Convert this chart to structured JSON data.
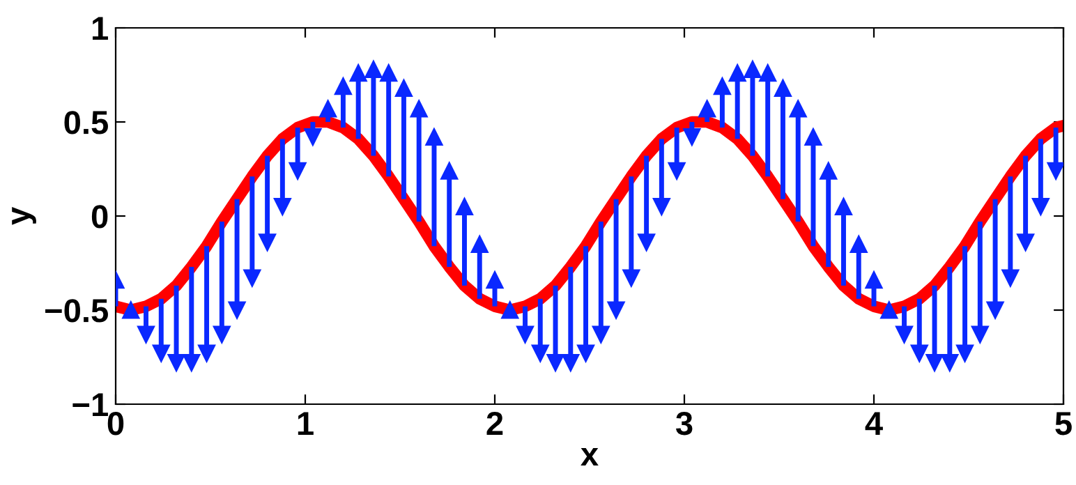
{
  "chart_data": {
    "type": "line",
    "xlabel": "x",
    "ylabel": "y",
    "xlim": [
      0,
      5
    ],
    "ylim": [
      -1,
      1
    ],
    "xticks": [
      0,
      1,
      2,
      3,
      4,
      5
    ],
    "yticks": [
      {
        "value": -1,
        "label": "−1"
      },
      {
        "value": -0.5,
        "label": "−0.5"
      },
      0,
      0.5,
      1
    ],
    "grid": false,
    "marker": "none",
    "line_style": "solid",
    "series": [
      {
        "color": "#ff0000",
        "x": [
          0,
          0.08,
          0.16,
          0.24,
          0.32,
          0.4,
          0.48,
          0.56,
          0.64,
          0.72,
          0.8,
          0.88,
          0.96,
          1.04,
          1.12,
          1.2,
          1.28,
          1.36,
          1.44,
          1.52,
          1.6,
          1.68,
          1.76,
          1.84,
          1.92,
          2,
          2.08,
          2.16,
          2.24,
          2.32,
          2.4,
          2.48,
          2.56,
          2.64,
          2.72,
          2.8,
          2.88,
          2.96,
          3.04,
          3.12,
          3.2,
          3.28,
          3.36,
          3.44,
          3.52,
          3.6,
          3.68,
          3.76,
          3.84,
          3.92,
          4,
          4.08,
          4.16,
          4.24,
          4.32,
          4.4,
          4.48,
          4.56,
          4.64,
          4.72,
          4.8,
          4.88,
          4.96,
          5
        ],
        "values": [
          -0.48,
          -0.5,
          -0.48,
          -0.44,
          -0.37,
          -0.27,
          -0.16,
          -0.03,
          0.09,
          0.21,
          0.32,
          0.41,
          0.47,
          0.5,
          0.5,
          0.47,
          0.41,
          0.32,
          0.21,
          0.09,
          -0.03,
          -0.16,
          -0.27,
          -0.37,
          -0.44,
          -0.48,
          -0.5,
          -0.48,
          -0.44,
          -0.37,
          -0.27,
          -0.16,
          -0.03,
          0.09,
          0.21,
          0.32,
          0.41,
          0.47,
          0.5,
          0.5,
          0.47,
          0.41,
          0.32,
          0.21,
          0.09,
          -0.03,
          -0.16,
          -0.27,
          -0.37,
          -0.44,
          -0.48,
          -0.5,
          -0.48,
          -0.44,
          -0.37,
          -0.27,
          -0.16,
          -0.03,
          0.09,
          0.21,
          0.32,
          0.41,
          0.47,
          0.48
        ]
      },
      {
        "type": "scatter",
        "color": "#0a28ff",
        "marker": "triangle",
        "x": [
          0,
          0.08,
          0.16,
          0.24,
          0.32,
          0.4,
          0.48,
          0.56,
          0.64,
          0.72,
          0.8,
          0.88,
          0.96,
          1.04,
          1.12,
          1.2,
          1.28,
          1.36,
          1.44,
          1.52,
          1.6,
          1.68,
          1.76,
          1.84,
          1.92,
          2,
          2.08,
          2.16,
          2.24,
          2.32,
          2.4,
          2.48,
          2.56,
          2.64,
          2.72,
          2.8,
          2.88,
          2.96,
          3.04,
          3.12,
          3.2,
          3.28,
          3.36,
          3.44,
          3.52,
          3.6,
          3.68,
          3.76,
          3.84,
          3.92,
          4,
          4.08,
          4.16,
          4.24,
          4.32,
          4.4,
          4.48,
          4.56,
          4.64,
          4.72,
          4.8,
          4.88,
          4.96
        ],
        "values": [
          -0.34,
          -0.5,
          -0.63,
          -0.73,
          -0.78,
          -0.78,
          -0.73,
          -0.63,
          -0.5,
          -0.33,
          -0.14,
          0.05,
          0.24,
          0.42,
          0.57,
          0.69,
          0.76,
          0.78,
          0.76,
          0.68,
          0.57,
          0.42,
          0.24,
          0.05,
          -0.15,
          -0.34,
          -0.5,
          -0.63,
          -0.73,
          -0.78,
          -0.78,
          -0.73,
          -0.63,
          -0.5,
          -0.33,
          -0.14,
          0.05,
          0.24,
          0.42,
          0.57,
          0.69,
          0.76,
          0.78,
          0.76,
          0.68,
          0.57,
          0.42,
          0.24,
          0.05,
          -0.15,
          -0.34,
          -0.5,
          -0.63,
          -0.73,
          -0.78,
          -0.78,
          -0.73,
          -0.63,
          -0.5,
          -0.33,
          -0.14,
          0.05,
          0.24
        ],
        "errors": [
          [
            -0.48,
            -0.34
          ],
          [
            -0.5,
            -0.5
          ],
          [
            -0.63,
            -0.48
          ],
          [
            -0.73,
            -0.44
          ],
          [
            -0.78,
            -0.37
          ],
          [
            -0.78,
            -0.27
          ],
          [
            -0.73,
            -0.16
          ],
          [
            -0.63,
            -0.03
          ],
          [
            -0.5,
            0.09
          ],
          [
            -0.33,
            0.21
          ],
          [
            -0.14,
            0.32
          ],
          [
            0.05,
            0.41
          ],
          [
            0.24,
            0.47
          ],
          [
            0.42,
            0.5
          ],
          [
            0.5,
            0.57
          ],
          [
            0.47,
            0.69
          ],
          [
            0.41,
            0.76
          ],
          [
            0.32,
            0.78
          ],
          [
            0.21,
            0.76
          ],
          [
            0.09,
            0.68
          ],
          [
            -0.03,
            0.57
          ],
          [
            -0.16,
            0.42
          ],
          [
            -0.27,
            0.24
          ],
          [
            -0.37,
            0.05
          ],
          [
            -0.44,
            -0.15
          ],
          [
            -0.48,
            -0.34
          ],
          [
            -0.5,
            -0.5
          ],
          [
            -0.63,
            -0.48
          ],
          [
            -0.73,
            -0.44
          ],
          [
            -0.78,
            -0.37
          ],
          [
            -0.78,
            -0.27
          ],
          [
            -0.73,
            -0.16
          ],
          [
            -0.63,
            -0.03
          ],
          [
            -0.5,
            0.09
          ],
          [
            -0.33,
            0.21
          ],
          [
            -0.14,
            0.32
          ],
          [
            0.05,
            0.41
          ],
          [
            0.24,
            0.47
          ],
          [
            0.42,
            0.5
          ],
          [
            0.5,
            0.57
          ],
          [
            0.47,
            0.69
          ],
          [
            0.41,
            0.76
          ],
          [
            0.32,
            0.78
          ],
          [
            0.21,
            0.76
          ],
          [
            0.09,
            0.68
          ],
          [
            -0.03,
            0.57
          ],
          [
            -0.16,
            0.42
          ],
          [
            -0.27,
            0.24
          ],
          [
            -0.37,
            0.05
          ],
          [
            -0.44,
            -0.15
          ],
          [
            -0.48,
            -0.34
          ],
          [
            -0.5,
            -0.5
          ],
          [
            -0.63,
            -0.48
          ],
          [
            -0.73,
            -0.44
          ],
          [
            -0.78,
            -0.37
          ],
          [
            -0.78,
            -0.27
          ],
          [
            -0.73,
            -0.16
          ],
          [
            -0.63,
            -0.03
          ],
          [
            -0.5,
            0.09
          ],
          [
            -0.33,
            0.21
          ],
          [
            -0.14,
            0.32
          ],
          [
            0.05,
            0.41
          ],
          [
            0.24,
            0.47
          ]
        ]
      }
    ]
  }
}
